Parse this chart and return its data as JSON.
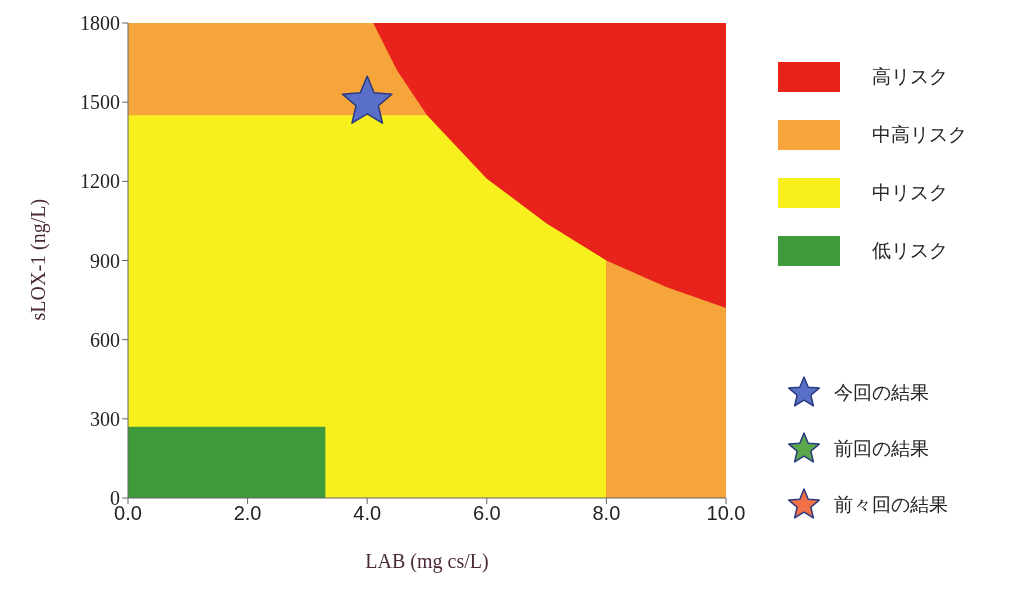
{
  "chart_data": {
    "type": "area",
    "xlabel": "LAB (mg cs/L)",
    "ylabel": "sLOX-1 (ng/L)",
    "xlim": [
      0,
      10
    ],
    "xticks": [
      {
        "value": 0,
        "label": "0.0"
      },
      {
        "value": 2,
        "label": "2.0"
      },
      {
        "value": 4,
        "label": "4.0"
      },
      {
        "value": 6,
        "label": "6.0"
      },
      {
        "value": 8,
        "label": "8.0"
      },
      {
        "value": 10,
        "label": "10.0"
      }
    ],
    "ylim": [
      0,
      1800
    ],
    "yticks": [
      0,
      300,
      600,
      900,
      1200,
      1500,
      1800
    ],
    "legend": "right",
    "series": [
      {
        "name": "高リスク",
        "color": "#e8231c",
        "x": [
          4.1,
          10
        ],
        "values": [
          1800,
          1800
        ]
      },
      {
        "name": "中高リスク",
        "color": "#f5a53a",
        "x": [
          0,
          4.1,
          4.5,
          5,
          6,
          7,
          8,
          9,
          10
        ],
        "values": [
          1800,
          1800,
          1620,
          1450,
          null,
          null,
          900,
          800,
          720
        ]
      },
      {
        "name": "中リスク",
        "color": "#f7f01e",
        "x": [
          0,
          5,
          6,
          7,
          8
        ],
        "values": [
          1450,
          1450,
          1210,
          1040,
          900
        ]
      },
      {
        "name": "低リスク",
        "color": "#3e9a3a",
        "x": [
          0,
          3.3
        ],
        "values": [
          270,
          270
        ]
      },
      {
        "name": "今回の結果",
        "type": "scatter",
        "marker": "star",
        "color": "#5a6fc8",
        "x": [
          4.0
        ],
        "values": [
          1500
        ]
      },
      {
        "name": "前回の結果",
        "type": "scatter",
        "marker": "star",
        "color": "#5aa84a"
      },
      {
        "name": "前々回の結果",
        "type": "scatter",
        "marker": "star",
        "color": "#f07048"
      }
    ]
  }
}
